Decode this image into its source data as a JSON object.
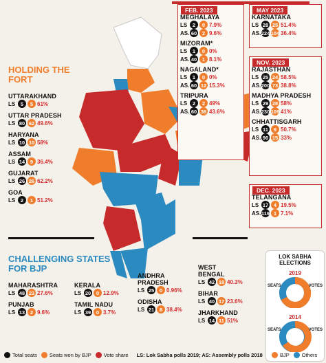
{
  "colors": {
    "bjp": "#ef7d2b",
    "others": "#2b8ac0",
    "vote": "#c62a2a",
    "ruled": "#c62a2a"
  },
  "sections": {
    "holding": "HOLDING THE FORT",
    "challenging": "CHALLENGING STATES FOR BJP"
  },
  "labels": {
    "ls": "LS",
    "as": "AS."
  },
  "holding_states": [
    {
      "name": "UTTARAKHAND",
      "ls": [
        "5",
        "5",
        "61%"
      ]
    },
    {
      "name": "UTTAR PRADESH",
      "ls": [
        "80",
        "62",
        "49.6%"
      ]
    },
    {
      "name": "HARYANA",
      "ls": [
        "10",
        "10",
        "58%"
      ]
    },
    {
      "name": "ASSAM",
      "ls": [
        "14",
        "9",
        "36.4%"
      ]
    },
    {
      "name": "GUJARAT",
      "ls": [
        "26",
        "26",
        "62.2%"
      ]
    },
    {
      "name": "GOA",
      "ls": [
        "2",
        "1",
        "51.2%"
      ]
    }
  ],
  "challenging_states": [
    {
      "name": "MAHARASHTRA",
      "ls": [
        "48",
        "23",
        "27.6%"
      ]
    },
    {
      "name": "PUNJAB",
      "ls": [
        "13",
        "2",
        "9.6%"
      ]
    },
    {
      "name": "KERALA",
      "ls": [
        "20",
        "0",
        "12.9%"
      ]
    },
    {
      "name": "TAMIL NADU",
      "ls": [
        "39",
        "0",
        "3.7%"
      ]
    },
    {
      "name": "ANDHRA PRADESH",
      "ls": [
        "25",
        "0",
        "0.96%"
      ]
    },
    {
      "name": "ODISHA",
      "ls": [
        "21",
        "8",
        "38.4%"
      ]
    },
    {
      "name": "WEST BENGAL",
      "ls": [
        "42",
        "18",
        "40.3%"
      ]
    },
    {
      "name": "BIHAR",
      "ls": [
        "40",
        "17",
        "23.6%"
      ]
    },
    {
      "name": "JHARKHAND",
      "ls": [
        "14",
        "11",
        "51%"
      ]
    }
  ],
  "elections": {
    "feb2023": {
      "tag": "FEB. 2023",
      "states": [
        {
          "name": "MEGHALAYA",
          "ls": [
            "2",
            "0",
            "7.9%"
          ],
          "as": [
            "60",
            "2",
            "9.6%"
          ]
        },
        {
          "name": "MIZORAM*",
          "ls": [
            "1",
            "0",
            "0%"
          ],
          "as": [
            "40",
            "1",
            "8.1%"
          ]
        },
        {
          "name": "NAGALAND*",
          "ls": [
            "1",
            "0",
            "0%"
          ],
          "as": [
            "60",
            "12",
            "15.3%"
          ]
        },
        {
          "name": "TRIPURA",
          "ls": [
            "2",
            "2",
            "49%"
          ],
          "as": [
            "60",
            "36",
            "43.6%"
          ]
        }
      ]
    },
    "may2023": {
      "tag": "MAY 2023",
      "states": [
        {
          "name": "KARNATAKA",
          "ls": [
            "28",
            "25",
            "51.4%"
          ],
          "as": [
            "224",
            "104",
            "36.4%"
          ]
        }
      ]
    },
    "nov2023": {
      "tag": "NOV. 2023",
      "states": [
        {
          "name": "RAJASTHAN",
          "ls": [
            "25",
            "24",
            "58.5%"
          ],
          "as": [
            "200",
            "73",
            "38.8%"
          ]
        },
        {
          "name": "MADHYA PRADESH",
          "ls": [
            "29",
            "28",
            "58%"
          ],
          "as": [
            "230",
            "109",
            "41%"
          ]
        },
        {
          "name": "CHHATTISGARH",
          "ls": [
            "11",
            "9",
            "50.7%"
          ],
          "as": [
            "90",
            "15",
            "33%"
          ]
        }
      ]
    },
    "dec2023": {
      "tag": "DEC. 2023",
      "states": [
        {
          "name": "TELANGANA",
          "ls": [
            "17",
            "4",
            "19.5%"
          ],
          "as": [
            "119",
            "1",
            "7.1%"
          ]
        }
      ]
    }
  },
  "legend": {
    "total": "Total seats",
    "won": "Seats won by BJP",
    "vote": "Vote share",
    "note": "LS: Lok Sabha polls 2019; AS: Assembly polls 2018"
  },
  "lok_sabha_panel": {
    "title": "LOK SABHA ELECTIONS",
    "year2019": "2019",
    "year2014": "2014",
    "seats2019": [
      "303",
      "240"
    ],
    "votes2019": [
      "63%",
      "37%"
    ],
    "seats2014": [
      "282",
      "261"
    ],
    "votes2014": [
      "69%",
      "31%"
    ],
    "seats_label": "SEATS",
    "votes_label": "VOTES",
    "bjp": "BJP",
    "others": "Others"
  }
}
